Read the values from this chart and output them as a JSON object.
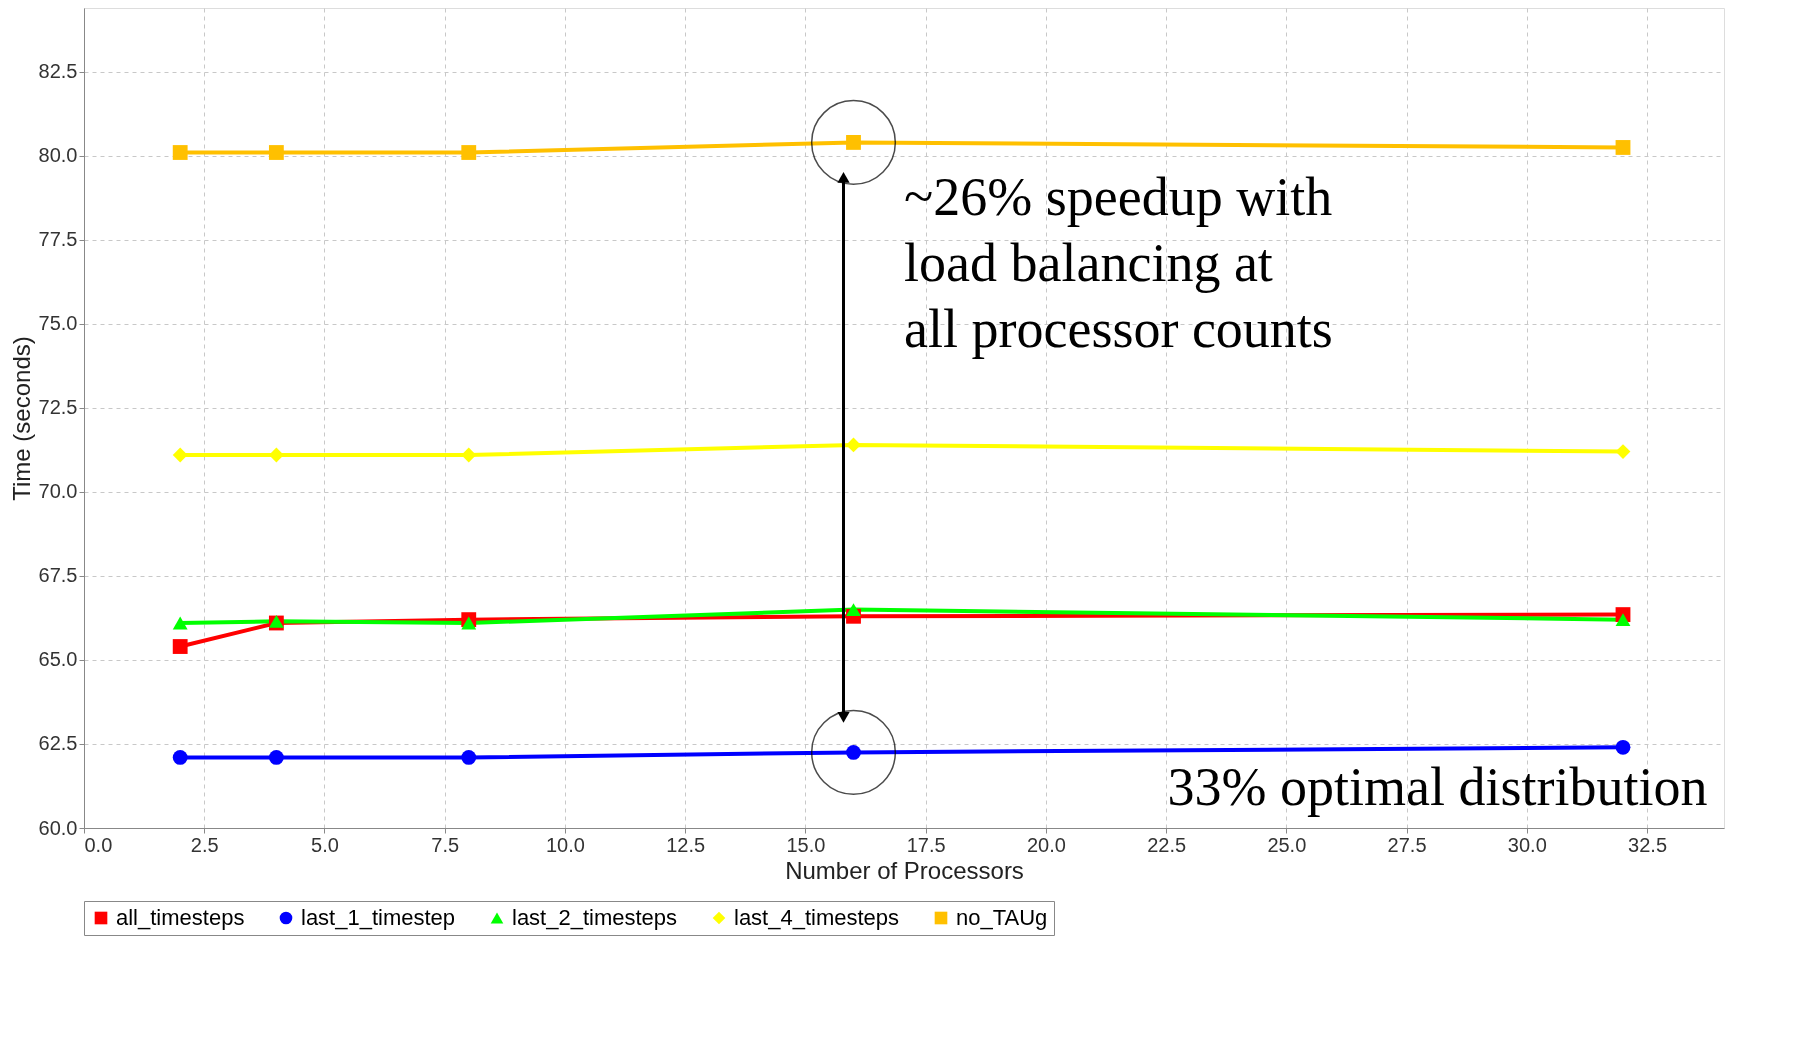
{
  "chart_data": {
    "type": "line",
    "xlabel": "Number of Processors",
    "ylabel": "Time (seconds)",
    "x": [
      2,
      4,
      8,
      16,
      32
    ],
    "series": [
      {
        "name": "all_timesteps",
        "color": "#ff0000",
        "marker": "square",
        "values": [
          65.4,
          66.1,
          66.2,
          66.3,
          66.35
        ]
      },
      {
        "name": "last_1_timestep",
        "color": "#0000ff",
        "marker": "circle",
        "values": [
          62.1,
          62.1,
          62.1,
          62.25,
          62.4
        ]
      },
      {
        "name": "last_2_timesteps",
        "color": "#00ff00",
        "marker": "triangle",
        "values": [
          66.1,
          66.15,
          66.1,
          66.5,
          66.2
        ]
      },
      {
        "name": "last_4_timesteps",
        "color": "#ffff00",
        "marker": "diamond",
        "values": [
          71.1,
          71.1,
          71.1,
          71.4,
          71.2
        ]
      },
      {
        "name": "no_TAUg",
        "color": "#ffc000",
        "marker": "square",
        "values": [
          80.1,
          80.1,
          80.1,
          80.4,
          80.25
        ]
      }
    ],
    "xlim": [
      0,
      34.1
    ],
    "xticks": [
      {
        "value": 0,
        "label": "0.0"
      },
      2.5,
      {
        "value": 5,
        "label": "5.0"
      },
      7.5,
      {
        "value": 10,
        "label": "10.0"
      },
      12.5,
      {
        "value": 15,
        "label": "15.0"
      },
      17.5,
      {
        "value": 20,
        "label": "20.0"
      },
      22.5,
      {
        "value": 25,
        "label": "25.0"
      },
      27.5,
      {
        "value": 30,
        "label": "30.0"
      },
      32.5
    ],
    "ylim": [
      60,
      84.4
    ],
    "yticks": [
      {
        "value": 60,
        "label": "60.0"
      },
      62.5,
      {
        "value": 65,
        "label": "65.0"
      },
      67.5,
      {
        "value": 70,
        "label": "70.0"
      },
      72.5,
      {
        "value": 75,
        "label": "75.0"
      },
      77.5,
      {
        "value": 80,
        "label": "80.0"
      },
      82.5
    ],
    "grid": true,
    "legend": "bottom",
    "line_style": "solid",
    "annotations": [
      "~26% speedup with\nload balancing at\nall processor counts",
      "33% optimal distribution"
    ]
  }
}
